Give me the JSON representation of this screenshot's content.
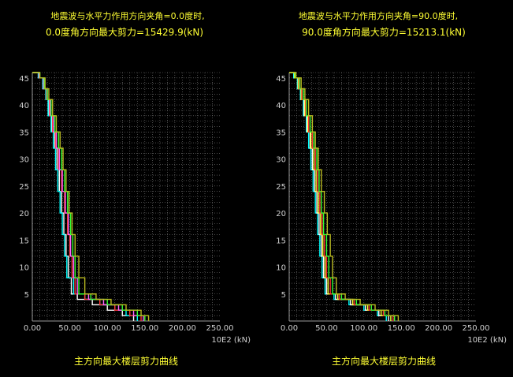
{
  "chart_data": [
    {
      "type": "line",
      "title_line1": "地震波与水平力作用方向夹角=0.0度时,",
      "title_line2": "0.0度角方向最大剪力=15429.9(kN)",
      "xlabel": "10E2 (kN)",
      "caption": "主方向最大楼层剪力曲线",
      "xlim": [
        0,
        250
      ],
      "ylim": [
        0,
        46
      ],
      "x_ticks": [
        "0.00",
        "50.00",
        "100.00",
        "150.00",
        "200.00",
        "250.00"
      ],
      "y_ticks": [
        "5",
        "10",
        "15",
        "20",
        "25",
        "30",
        "35",
        "40",
        "45"
      ],
      "grid": true,
      "series": [
        {
          "color": "#ffffff",
          "points": [
            [
              0,
              46
            ],
            [
              8,
              45
            ],
            [
              14,
              43
            ],
            [
              18,
              41
            ],
            [
              22,
              38
            ],
            [
              26,
              35
            ],
            [
              30,
              32
            ],
            [
              33,
              28
            ],
            [
              36,
              24
            ],
            [
              39,
              20
            ],
            [
              42,
              16
            ],
            [
              45,
              12
            ],
            [
              48,
              8
            ],
            [
              52,
              5
            ],
            [
              60,
              4
            ],
            [
              80,
              3
            ],
            [
              100,
              2
            ],
            [
              120,
              1
            ],
            [
              135,
              0
            ]
          ]
        },
        {
          "color": "#00ffff",
          "points": [
            [
              0,
              46
            ],
            [
              8,
              45
            ],
            [
              14,
              43
            ],
            [
              18,
              41
            ],
            [
              21,
              38
            ],
            [
              25,
              35
            ],
            [
              28,
              32
            ],
            [
              31,
              28
            ],
            [
              34,
              24
            ],
            [
              37,
              20
            ],
            [
              40,
              16
            ],
            [
              43,
              12
            ],
            [
              46,
              8
            ],
            [
              55,
              5
            ],
            [
              70,
              4
            ],
            [
              90,
              3
            ],
            [
              110,
              2
            ],
            [
              125,
              1
            ],
            [
              140,
              0
            ]
          ]
        },
        {
          "color": "#ff3333",
          "points": [
            [
              0,
              46
            ],
            [
              9,
              45
            ],
            [
              15,
              43
            ],
            [
              19,
              41
            ],
            [
              23,
              38
            ],
            [
              27,
              35
            ],
            [
              31,
              32
            ],
            [
              35,
              28
            ],
            [
              39,
              24
            ],
            [
              43,
              20
            ],
            [
              47,
              16
            ],
            [
              50,
              12
            ],
            [
              53,
              8
            ],
            [
              57,
              5
            ],
            [
              70,
              4
            ],
            [
              90,
              3
            ],
            [
              110,
              2
            ],
            [
              130,
              1
            ],
            [
              145,
              0
            ]
          ]
        },
        {
          "color": "#ff66ff",
          "points": [
            [
              0,
              46
            ],
            [
              9,
              45
            ],
            [
              15,
              43
            ],
            [
              20,
              41
            ],
            [
              24,
              38
            ],
            [
              28,
              35
            ],
            [
              32,
              32
            ],
            [
              36,
              28
            ],
            [
              40,
              24
            ],
            [
              44,
              20
            ],
            [
              48,
              16
            ],
            [
              51,
              12
            ],
            [
              55,
              8
            ],
            [
              60,
              5
            ],
            [
              75,
              4
            ],
            [
              95,
              3
            ],
            [
              115,
              2
            ],
            [
              135,
              1
            ],
            [
              148,
              0
            ]
          ]
        },
        {
          "color": "#33ff33",
          "points": [
            [
              0,
              46
            ],
            [
              10,
              45
            ],
            [
              16,
              43
            ],
            [
              20,
              41
            ],
            [
              25,
              38
            ],
            [
              30,
              35
            ],
            [
              35,
              32
            ],
            [
              39,
              28
            ],
            [
              43,
              24
            ],
            [
              47,
              20
            ],
            [
              51,
              16
            ],
            [
              54,
              12
            ],
            [
              57,
              8
            ],
            [
              62,
              5
            ],
            [
              78,
              4
            ],
            [
              100,
              3
            ],
            [
              120,
              2
            ],
            [
              140,
              1
            ],
            [
              150,
              0
            ]
          ]
        },
        {
          "color": "#bbbb22",
          "points": [
            [
              0,
              46
            ],
            [
              10,
              45
            ],
            [
              17,
              43
            ],
            [
              22,
              41
            ],
            [
              27,
              38
            ],
            [
              32,
              35
            ],
            [
              37,
              32
            ],
            [
              41,
              28
            ],
            [
              45,
              24
            ],
            [
              49,
              20
            ],
            [
              53,
              16
            ],
            [
              57,
              12
            ],
            [
              62,
              8
            ],
            [
              70,
              5
            ],
            [
              85,
              4
            ],
            [
              105,
              3
            ],
            [
              125,
              2
            ],
            [
              145,
              1
            ],
            [
              155,
              0
            ]
          ]
        }
      ]
    },
    {
      "type": "line",
      "title_line1": "地震波与水平力作用方向夹角=90.0度时,",
      "title_line2": "90.0度角方向最大剪力=15213.1(kN)",
      "xlabel": "10E2 (kN)",
      "caption": "主方向最大楼层剪力曲线",
      "xlim": [
        0,
        250
      ],
      "ylim": [
        0,
        46
      ],
      "x_ticks": [
        "0.00",
        "50.00",
        "100.00",
        "150.00",
        "200.00",
        "250.00"
      ],
      "y_ticks": [
        "5",
        "10",
        "15",
        "20",
        "25",
        "30",
        "35",
        "40",
        "45"
      ],
      "grid": true,
      "series": [
        {
          "color": "#00ffff",
          "points": [
            [
              0,
              46
            ],
            [
              6,
              45
            ],
            [
              11,
              43
            ],
            [
              15,
              41
            ],
            [
              19,
              38
            ],
            [
              23,
              35
            ],
            [
              26,
              32
            ],
            [
              29,
              28
            ],
            [
              32,
              24
            ],
            [
              35,
              20
            ],
            [
              38,
              16
            ],
            [
              41,
              12
            ],
            [
              44,
              8
            ],
            [
              48,
              5
            ],
            [
              60,
              4
            ],
            [
              80,
              3
            ],
            [
              100,
              2
            ],
            [
              118,
              1
            ],
            [
              130,
              0
            ]
          ]
        },
        {
          "color": "#ffffff",
          "points": [
            [
              0,
              46
            ],
            [
              7,
              45
            ],
            [
              12,
              43
            ],
            [
              16,
              41
            ],
            [
              20,
              38
            ],
            [
              24,
              35
            ],
            [
              28,
              32
            ],
            [
              31,
              28
            ],
            [
              34,
              24
            ],
            [
              37,
              20
            ],
            [
              40,
              16
            ],
            [
              43,
              12
            ],
            [
              46,
              8
            ],
            [
              50,
              5
            ],
            [
              62,
              4
            ],
            [
              82,
              3
            ],
            [
              102,
              2
            ],
            [
              120,
              1
            ],
            [
              133,
              0
            ]
          ]
        },
        {
          "color": "#ffff33",
          "points": [
            [
              0,
              46
            ],
            [
              7,
              45
            ],
            [
              12,
              43
            ],
            [
              16,
              41
            ],
            [
              21,
              38
            ],
            [
              25,
              35
            ],
            [
              29,
              32
            ],
            [
              33,
              28
            ],
            [
              36,
              24
            ],
            [
              39,
              20
            ],
            [
              42,
              16
            ],
            [
              45,
              12
            ],
            [
              48,
              8
            ],
            [
              52,
              5
            ],
            [
              65,
              4
            ],
            [
              85,
              3
            ],
            [
              105,
              2
            ],
            [
              123,
              1
            ],
            [
              136,
              0
            ]
          ]
        },
        {
          "color": "#ff3333",
          "points": [
            [
              0,
              46
            ],
            [
              8,
              45
            ],
            [
              13,
              43
            ],
            [
              17,
              41
            ],
            [
              22,
              38
            ],
            [
              26,
              35
            ],
            [
              31,
              32
            ],
            [
              35,
              28
            ],
            [
              38,
              24
            ],
            [
              41,
              20
            ],
            [
              44,
              16
            ],
            [
              47,
              12
            ],
            [
              50,
              8
            ],
            [
              55,
              5
            ],
            [
              67,
              4
            ],
            [
              87,
              3
            ],
            [
              107,
              2
            ],
            [
              126,
              1
            ],
            [
              139,
              0
            ]
          ]
        },
        {
          "color": "#33ff33",
          "points": [
            [
              0,
              46
            ],
            [
              8,
              45
            ],
            [
              14,
              43
            ],
            [
              19,
              41
            ],
            [
              23,
              38
            ],
            [
              28,
              35
            ],
            [
              33,
              32
            ],
            [
              37,
              28
            ],
            [
              40,
              24
            ],
            [
              43,
              20
            ],
            [
              46,
              16
            ],
            [
              50,
              12
            ],
            [
              53,
              8
            ],
            [
              58,
              5
            ],
            [
              70,
              4
            ],
            [
              90,
              3
            ],
            [
              110,
              2
            ],
            [
              128,
              1
            ],
            [
              141,
              0
            ]
          ]
        },
        {
          "color": "#bbbb22",
          "points": [
            [
              0,
              46
            ],
            [
              9,
              45
            ],
            [
              16,
              43
            ],
            [
              21,
              41
            ],
            [
              26,
              38
            ],
            [
              31,
              35
            ],
            [
              35,
              32
            ],
            [
              39,
              28
            ],
            [
              43,
              24
            ],
            [
              47,
              20
            ],
            [
              51,
              16
            ],
            [
              55,
              12
            ],
            [
              58,
              8
            ],
            [
              63,
              5
            ],
            [
              75,
              4
            ],
            [
              95,
              3
            ],
            [
              115,
              2
            ],
            [
              133,
              1
            ],
            [
              146,
              0
            ]
          ]
        }
      ]
    }
  ]
}
